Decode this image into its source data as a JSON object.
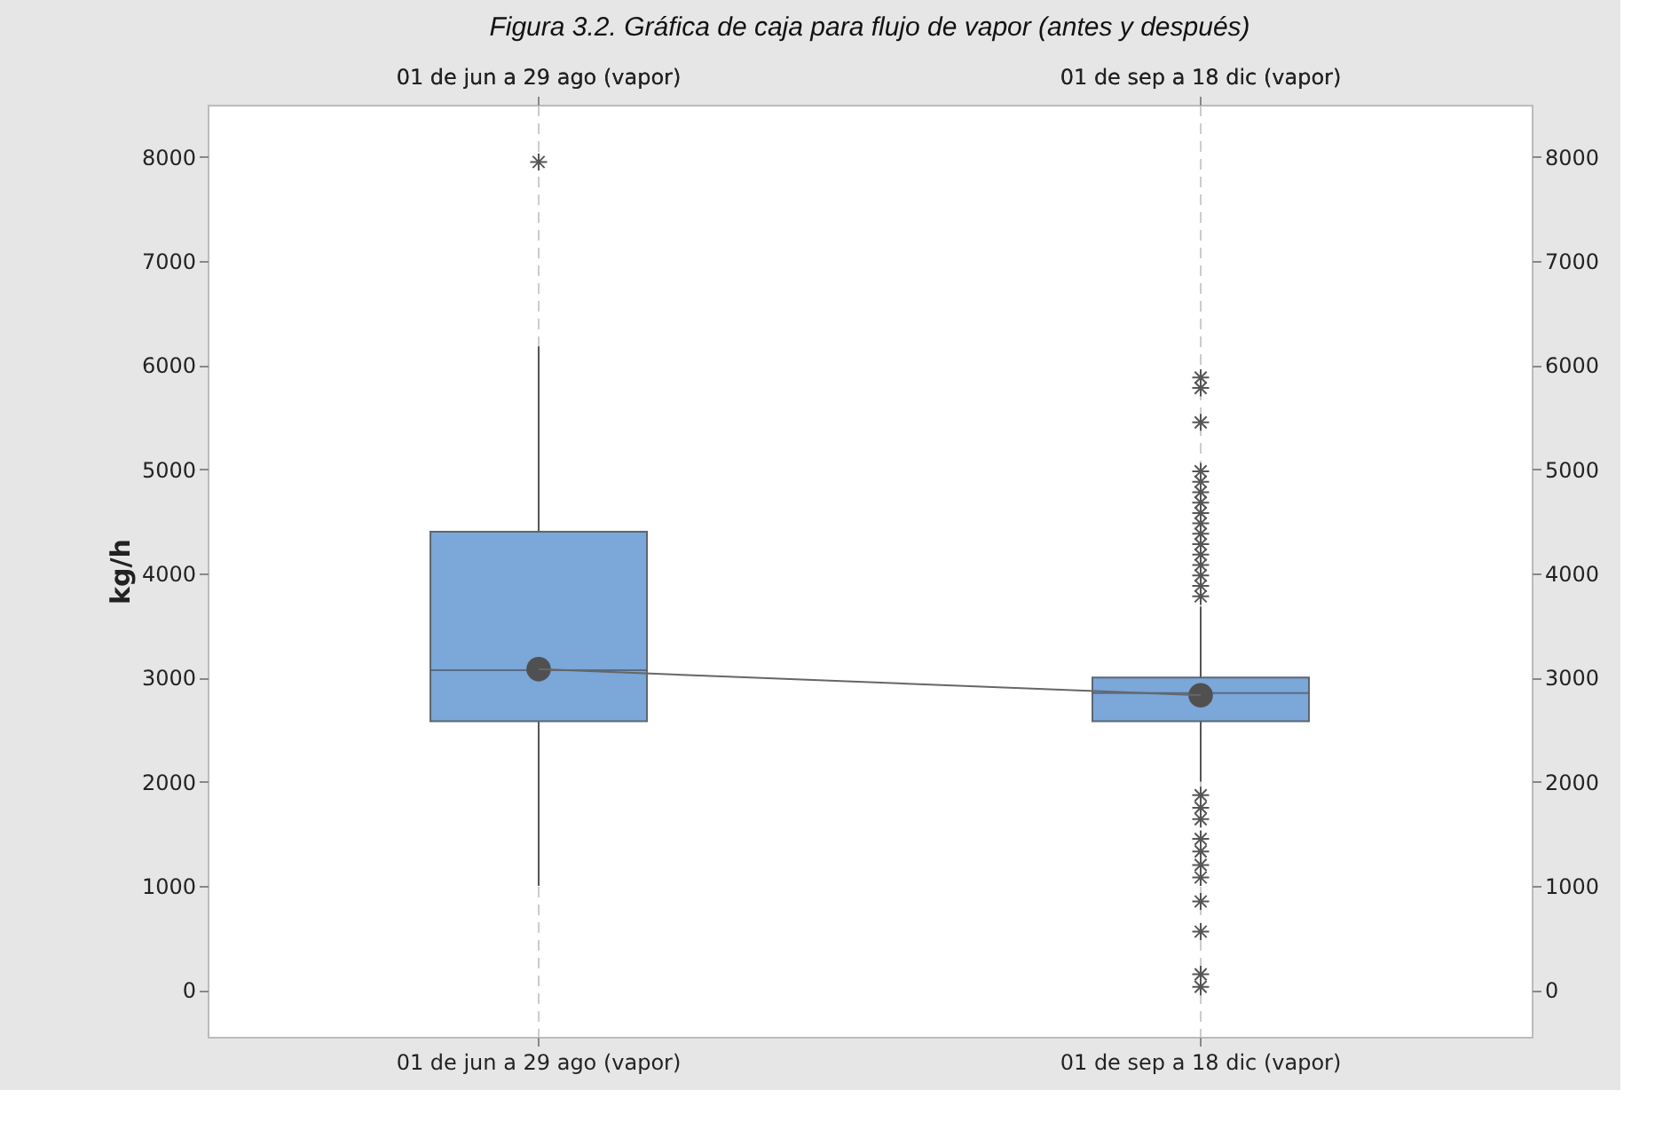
{
  "chart_data": {
    "type": "box",
    "title": "Figura 3.2. Gráfica de caja para flujo de vapor (antes y después)",
    "ylabel": "kg/h",
    "categories": [
      "01 de jun a 29 ago (vapor)",
      "01 de sep a 18 dic (vapor)"
    ],
    "boxes": [
      {
        "low": 1000,
        "q1": 2580,
        "median": 3070,
        "q3": 4400,
        "high": 6180,
        "mean": 3080,
        "outliers": [
          7950
        ]
      },
      {
        "low": 2000,
        "q1": 2580,
        "median": 2850,
        "q3": 3000,
        "high": 3680,
        "mean": 2830,
        "outliers": [
          5880,
          5780,
          5450,
          4980,
          4880,
          4780,
          4680,
          4580,
          4480,
          4380,
          4280,
          4180,
          4080,
          3980,
          3880,
          3780,
          1870,
          1750,
          1640,
          1450,
          1330,
          1200,
          1080,
          850,
          560,
          150,
          30
        ]
      }
    ],
    "series": [
      {
        "type": "line",
        "color": "#666666",
        "values": [
          3080,
          2830
        ]
      }
    ],
    "color": "#7ba7d9",
    "ylim": [
      -450,
      8500
    ],
    "yticks": [
      0,
      1000,
      2000,
      3000,
      4000,
      5000,
      6000,
      7000,
      8000
    ],
    "y2lim": [
      -450,
      8500
    ],
    "y2ticks": [
      0,
      1000,
      2000,
      3000,
      4000,
      5000,
      6000,
      7000,
      8000
    ],
    "grid": "x"
  }
}
